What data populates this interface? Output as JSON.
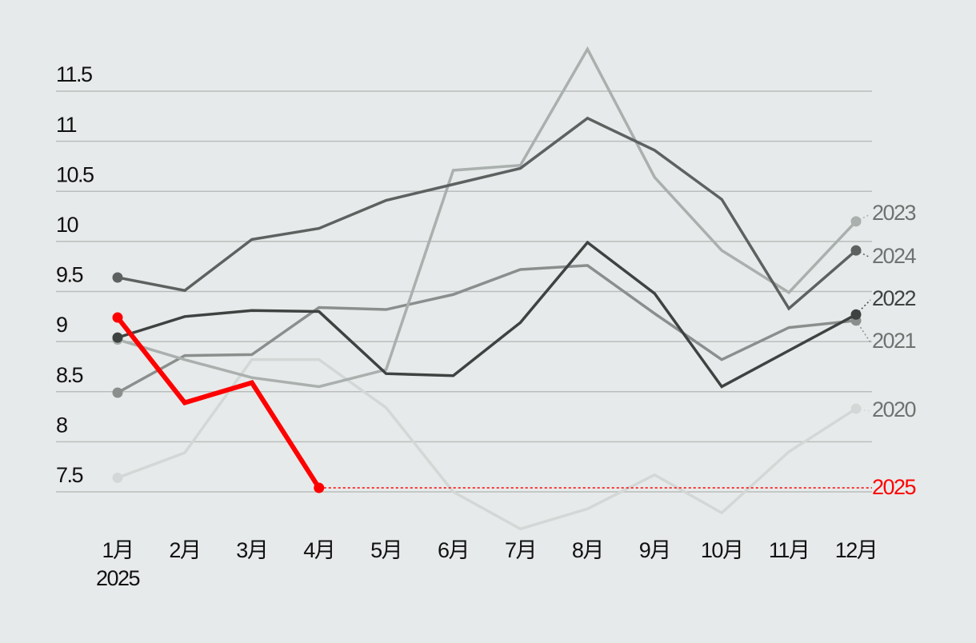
{
  "chart_data": {
    "type": "line",
    "categories": [
      "1月",
      "2月",
      "3月",
      "4月",
      "5月",
      "6月",
      "7月",
      "8月",
      "9月",
      "10月",
      "11月",
      "12月"
    ],
    "x_year": "2025",
    "ylim": [
      7.0,
      12.0
    ],
    "yticks": [
      7.5,
      8,
      8.5,
      9,
      9.5,
      10,
      10.5,
      11,
      11.5
    ],
    "grid": true,
    "series": [
      {
        "name": "2020",
        "color": "#d3d8d6",
        "values": [
          7.64,
          7.89,
          8.82,
          8.82,
          8.34,
          7.5,
          7.13,
          7.33,
          7.67,
          7.29,
          7.9,
          8.33
        ]
      },
      {
        "name": "2021",
        "color": "#8a8f8d",
        "values": [
          8.49,
          8.86,
          8.87,
          9.34,
          9.32,
          9.47,
          9.72,
          9.76,
          9.28,
          8.82,
          9.14,
          9.21
        ]
      },
      {
        "name": "2023",
        "color": "#a9b0ad",
        "values": [
          9.02,
          8.82,
          8.64,
          8.55,
          8.72,
          10.71,
          10.76,
          11.92,
          10.64,
          9.91,
          9.49,
          10.2
        ]
      },
      {
        "name": "2024",
        "color": "#5d6260",
        "values": [
          9.64,
          9.51,
          10.02,
          10.13,
          10.41,
          10.57,
          10.73,
          11.23,
          10.91,
          10.42,
          9.33,
          9.91
        ]
      },
      {
        "name": "2022",
        "color": "#3e4341",
        "values": [
          9.04,
          9.25,
          9.31,
          9.3,
          8.68,
          8.66,
          9.19,
          9.99,
          9.48,
          8.55,
          8.91,
          9.27
        ]
      },
      {
        "name": "2025",
        "color": "#ff0000",
        "values": [
          9.24,
          8.39,
          8.59,
          7.54,
          null,
          null,
          null,
          null,
          null,
          null,
          null,
          null
        ]
      }
    ]
  }
}
